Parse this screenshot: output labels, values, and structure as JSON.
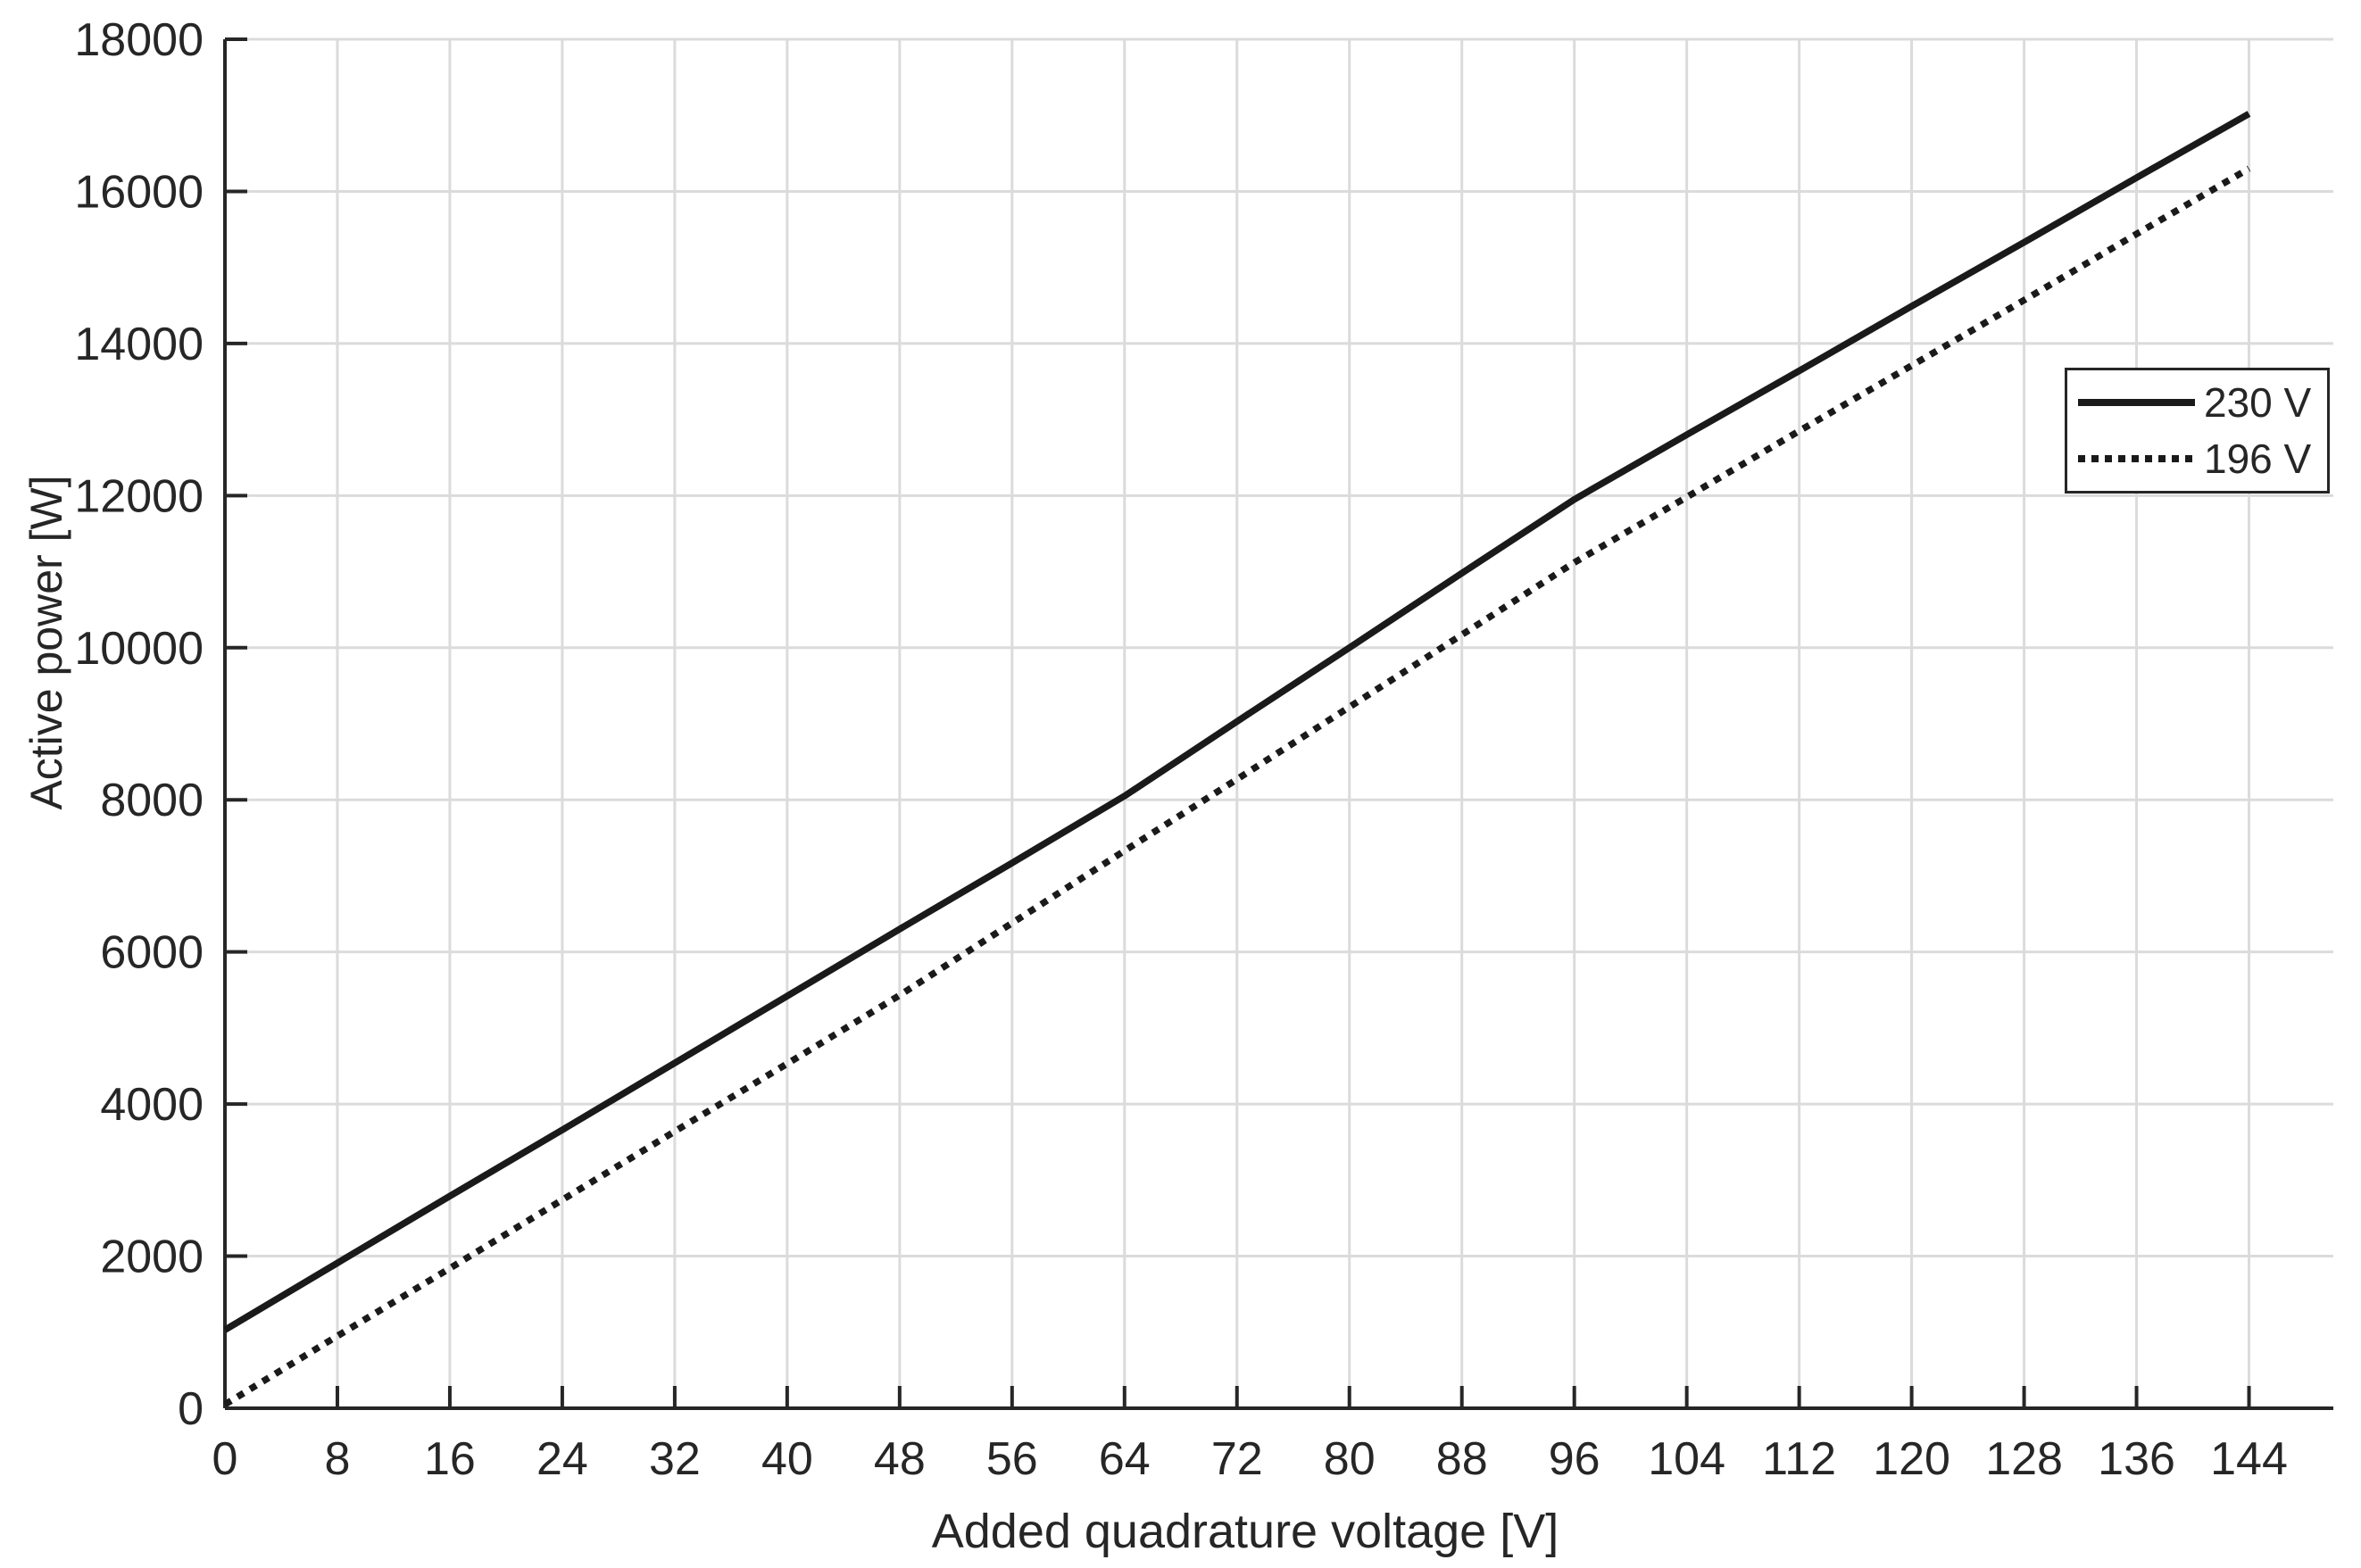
{
  "chart_data": {
    "type": "line",
    "title": "",
    "xlabel": "Added quadrature voltage [V]",
    "ylabel": "Active power [W]",
    "xlim": [
      0,
      150
    ],
    "ylim": [
      0,
      18000
    ],
    "xticks": [
      0,
      8,
      16,
      24,
      32,
      40,
      48,
      56,
      64,
      72,
      80,
      88,
      96,
      104,
      112,
      120,
      128,
      136,
      144
    ],
    "yticks": [
      0,
      2000,
      4000,
      6000,
      8000,
      10000,
      12000,
      14000,
      16000,
      18000
    ],
    "grid": true,
    "legend_position": "upper right",
    "x": [
      0,
      8,
      16,
      24,
      32,
      40,
      48,
      56,
      64,
      72,
      80,
      88,
      96,
      104,
      112,
      120,
      128,
      136,
      144
    ],
    "series": [
      {
        "name": "230 V",
        "style": "solid",
        "color": "#1a1a1a",
        "values": [
          1030,
          1910,
          2790,
          3660,
          4540,
          5420,
          6300,
          7170,
          8050,
          9030,
          10000,
          10980,
          11950,
          12800,
          13640,
          14490,
          15330,
          16180,
          17020
        ]
      },
      {
        "name": "196 V",
        "style": "dotted",
        "color": "#1a1a1a",
        "values": [
          50,
          950,
          1840,
          2740,
          3640,
          4530,
          5430,
          6380,
          7330,
          8270,
          9220,
          10170,
          11120,
          11980,
          12850,
          13710,
          14570,
          15440,
          16300
        ]
      }
    ],
    "colors": {
      "line": "#1a1a1a",
      "axis": "#262626",
      "grid": "#dbdbdb",
      "text": "#262626",
      "background": "#ffffff"
    }
  }
}
